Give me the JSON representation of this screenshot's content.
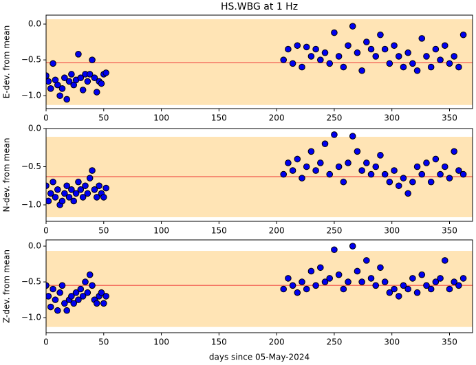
{
  "chart_data": [
    {
      "type": "scatter",
      "title": "HS.WBG at 1 Hz",
      "ylabel": "E-dev. from mean",
      "x": [
        0,
        2,
        4,
        6,
        8,
        10,
        12,
        14,
        16,
        18,
        20,
        22,
        24,
        26,
        28,
        30,
        32,
        34,
        36,
        38,
        40,
        42,
        44,
        46,
        48,
        50,
        52,
        206,
        210,
        214,
        218,
        222,
        226,
        230,
        234,
        238,
        242,
        246,
        250,
        254,
        258,
        262,
        266,
        270,
        274,
        278,
        282,
        286,
        290,
        294,
        298,
        302,
        306,
        310,
        314,
        318,
        322,
        326,
        330,
        334,
        338,
        342,
        346,
        350,
        354,
        358,
        362
      ],
      "values": [
        -0.72,
        -0.8,
        -0.9,
        -0.55,
        -0.78,
        -0.85,
        -1.0,
        -0.9,
        -0.75,
        -1.05,
        -0.8,
        -0.7,
        -0.85,
        -0.78,
        -0.42,
        -0.75,
        -0.92,
        -0.7,
        -0.8,
        -0.7,
        -0.5,
        -0.75,
        -0.95,
        -0.8,
        -0.83,
        -0.7,
        -0.68,
        -0.5,
        -0.35,
        -0.55,
        -0.3,
        -0.6,
        -0.32,
        -0.45,
        -0.35,
        -0.5,
        -0.4,
        -0.55,
        -0.12,
        -0.45,
        -0.6,
        -0.3,
        -0.03,
        -0.4,
        -0.65,
        -0.25,
        -0.35,
        -0.45,
        -0.15,
        -0.35,
        -0.55,
        -0.3,
        -0.45,
        -0.6,
        -0.4,
        -0.55,
        -0.65,
        -0.2,
        -0.45,
        -0.6,
        -0.35,
        -0.5,
        -0.3,
        -0.55,
        -0.45,
        -0.6,
        -0.15
      ],
      "color": "#0000ee",
      "mean": -0.54,
      "mean_color": "#f4705f",
      "band": [
        -1.13,
        0.067
      ],
      "band_color": "#ffe4b5",
      "xlim": [
        0,
        370
      ],
      "xticks": [
        0,
        50,
        100,
        150,
        200,
        250,
        300,
        350
      ],
      "ylim": [
        -1.18,
        0.125
      ],
      "yticks": [
        {
          "value": 0,
          "label": "0.0"
        },
        {
          "value": -0.5,
          "label": "−0.5"
        },
        {
          "value": -1,
          "label": "−1.0"
        }
      ]
    },
    {
      "type": "scatter",
      "ylabel": "N-dev. from mean",
      "x": [
        0,
        2,
        4,
        6,
        8,
        10,
        12,
        14,
        16,
        18,
        20,
        22,
        24,
        26,
        28,
        30,
        32,
        34,
        36,
        38,
        40,
        42,
        44,
        46,
        48,
        50,
        52,
        206,
        210,
        214,
        218,
        222,
        226,
        230,
        234,
        238,
        242,
        246,
        250,
        254,
        258,
        262,
        266,
        270,
        274,
        278,
        282,
        286,
        290,
        294,
        298,
        302,
        306,
        310,
        314,
        318,
        322,
        326,
        330,
        334,
        338,
        342,
        346,
        350,
        354,
        358,
        362
      ],
      "values": [
        -0.75,
        -0.95,
        -0.85,
        -0.7,
        -0.9,
        -0.8,
        -1.0,
        -0.95,
        -0.85,
        -0.75,
        -0.9,
        -0.8,
        -0.95,
        -0.85,
        -0.7,
        -0.8,
        -0.9,
        -0.75,
        -0.85,
        -0.65,
        -0.55,
        -0.8,
        -0.9,
        -0.75,
        -0.85,
        -0.9,
        -0.78,
        -0.6,
        -0.45,
        -0.55,
        -0.4,
        -0.65,
        -0.5,
        -0.3,
        -0.55,
        -0.45,
        -0.2,
        -0.6,
        -0.08,
        -0.5,
        -0.7,
        -0.45,
        -0.1,
        -0.3,
        -0.55,
        -0.45,
        -0.6,
        -0.5,
        -0.35,
        -0.6,
        -0.7,
        -0.55,
        -0.75,
        -0.65,
        -0.85,
        -0.7,
        -0.5,
        -0.6,
        -0.45,
        -0.7,
        -0.4,
        -0.6,
        -0.5,
        -0.65,
        -0.3,
        -0.55,
        -0.6
      ],
      "color": "#0000ee",
      "mean": -0.63,
      "mean_color": "#f4705f",
      "band": [
        -1.162,
        -0.108
      ],
      "band_color": "#ffe4b5",
      "xlim": [
        0,
        370
      ],
      "xticks": [
        0,
        50,
        100,
        150,
        200,
        250,
        300,
        350
      ],
      "ylim": [
        -1.216,
        0
      ],
      "yticks": [
        {
          "value": 0,
          "label": "0.0"
        },
        {
          "value": -0.5,
          "label": "−0.5"
        },
        {
          "value": -1,
          "label": "−1.0"
        }
      ]
    },
    {
      "type": "scatter",
      "ylabel": "Z-dev. from mean",
      "xlabel": "days since 05-May-2024",
      "x": [
        0,
        2,
        4,
        6,
        8,
        10,
        12,
        14,
        16,
        18,
        20,
        22,
        24,
        26,
        28,
        30,
        32,
        34,
        36,
        38,
        40,
        42,
        44,
        46,
        48,
        50,
        52,
        206,
        210,
        214,
        218,
        222,
        226,
        230,
        234,
        238,
        242,
        246,
        250,
        254,
        258,
        262,
        266,
        270,
        274,
        278,
        282,
        286,
        290,
        294,
        298,
        302,
        306,
        310,
        314,
        318,
        322,
        326,
        330,
        334,
        338,
        342,
        346,
        350,
        354,
        358,
        362
      ],
      "values": [
        -0.55,
        -0.7,
        -0.85,
        -0.6,
        -0.75,
        -0.9,
        -0.65,
        -0.55,
        -0.8,
        -0.9,
        -0.75,
        -0.7,
        -0.8,
        -0.65,
        -0.75,
        -0.6,
        -0.7,
        -0.5,
        -0.65,
        -0.4,
        -0.55,
        -0.75,
        -0.8,
        -0.7,
        -0.65,
        -0.8,
        -0.7,
        -0.6,
        -0.45,
        -0.55,
        -0.65,
        -0.5,
        -0.6,
        -0.35,
        -0.55,
        -0.3,
        -0.5,
        -0.45,
        -0.05,
        -0.4,
        -0.6,
        -0.5,
        0.0,
        -0.35,
        -0.5,
        -0.2,
        -0.45,
        -0.55,
        -0.3,
        -0.5,
        -0.65,
        -0.6,
        -0.7,
        -0.55,
        -0.6,
        -0.45,
        -0.65,
        -0.4,
        -0.55,
        -0.6,
        -0.5,
        -0.45,
        -0.2,
        -0.6,
        -0.5,
        -0.55,
        -0.45
      ],
      "color": "#0000ee",
      "mean": -0.55,
      "mean_color": "#f4705f",
      "band": [
        -1.13,
        -0.067
      ],
      "band_color": "#ffe4b5",
      "xlim": [
        0,
        370
      ],
      "xticks": [
        0,
        50,
        100,
        150,
        200,
        250,
        300,
        350
      ],
      "ylim": [
        -1.21,
        0.087
      ],
      "yticks": [
        {
          "value": 0,
          "label": "0.0"
        },
        {
          "value": -0.5,
          "label": "−0.5"
        },
        {
          "value": -1,
          "label": "−1.0"
        }
      ]
    }
  ]
}
